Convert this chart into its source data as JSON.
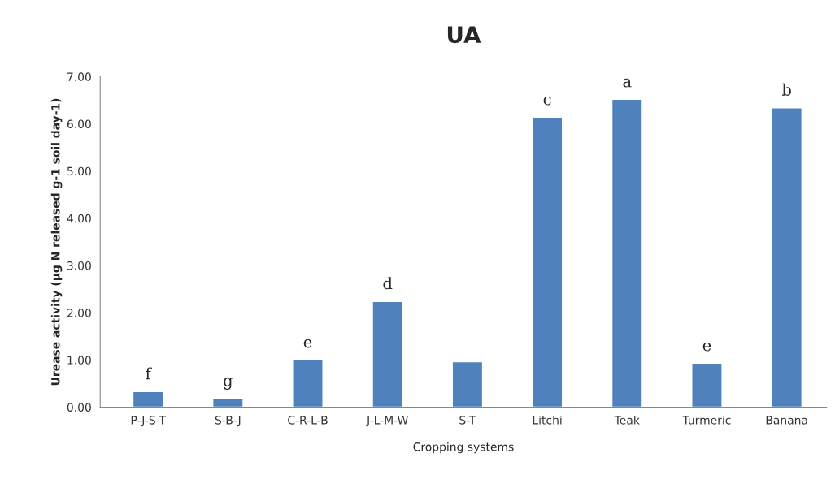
{
  "chart_data": {
    "type": "bar",
    "title": "UA",
    "xlabel": "Cropping systems",
    "ylabel": "Urease activity (µg N released g-1 soil day-1)",
    "categories": [
      "P-J-S-T",
      "S-B-J",
      "C-R-L-B",
      "J-L-M-W",
      "S-T",
      "Litchi",
      "Teak",
      "Turmeric",
      "Banana"
    ],
    "values": [
      0.33,
      0.18,
      1.0,
      2.24,
      0.96,
      6.14,
      6.52,
      0.93,
      6.34
    ],
    "color": "#4f81bd",
    "ylim": [
      0,
      7
    ],
    "yticks": [
      {
        "value": 0,
        "label": "0.00"
      },
      {
        "value": 1,
        "label": "1.00"
      },
      {
        "value": 2,
        "label": "2.00"
      },
      {
        "value": 3,
        "label": "3.00"
      },
      {
        "value": 4,
        "label": "4.00"
      },
      {
        "value": 5,
        "label": "5.00"
      },
      {
        "value": 6,
        "label": "6.00"
      },
      {
        "value": 7,
        "label": "7.00"
      }
    ],
    "annotations": [
      {
        "text": "f",
        "x": "P-J-S-T",
        "y": 0.33
      },
      {
        "text": "g",
        "x": "S-B-J",
        "y": 0.18
      },
      {
        "text": "e",
        "x": "C-R-L-B",
        "y": 1.0
      },
      {
        "text": "d",
        "x": "J-L-M-W",
        "y": 2.24
      },
      {
        "text": "c",
        "x": "Litchi",
        "y": 6.14
      },
      {
        "text": "a",
        "x": "Teak",
        "y": 6.52
      },
      {
        "text": "e",
        "x": "Turmeric",
        "y": 0.93
      },
      {
        "text": "b",
        "x": "Banana",
        "y": 6.34
      }
    ],
    "grid": false
  }
}
